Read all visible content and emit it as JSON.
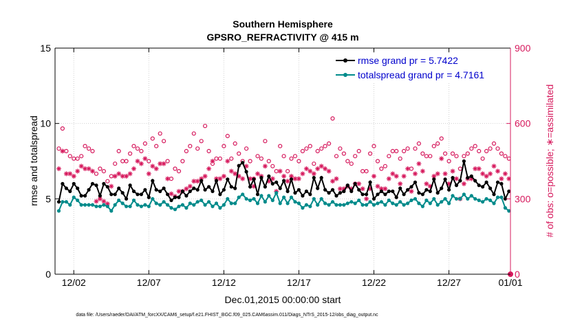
{
  "chart_data": {
    "type": "line",
    "title": "Southern Hemisphere",
    "subtitle": "GPSRO_REFRACTIVITY @ 415 m",
    "xlabel": "Dec.01,2015 00:00:00 start",
    "ylabel": "rmse and totalspread",
    "y2label": "# of obs: o=possible; ∗=assimilated",
    "footnote": "data file: /Users/raeder/DAI/ATM_forcXX/CAM6_setup/f.e21.FHIST_BGC.f09_025.CAM6assim.011/Diags_NTrS_2015-12/obs_diag_output.nc",
    "xlim": [
      0.75,
      31.1
    ],
    "ylim": [
      0,
      15
    ],
    "y2lim": [
      0,
      900
    ],
    "x_ticks": [
      2,
      7,
      12,
      17,
      22,
      27,
      32
    ],
    "x_tick_labels": [
      "12/02",
      "12/07",
      "12/12",
      "12/17",
      "12/22",
      "12/27",
      "01/01"
    ],
    "y_ticks": [
      0,
      5,
      10,
      15
    ],
    "y2_ticks": [
      0,
      300,
      600,
      900
    ],
    "grid": true,
    "legend_position": "top-right",
    "colors": {
      "rmse": "#000000",
      "spread": "#008b8b",
      "obs": "#d6185c",
      "legend_text": "#0000cc"
    },
    "x": [
      1.0,
      1.25,
      1.5,
      1.75,
      2.0,
      2.25,
      2.5,
      2.75,
      3.0,
      3.25,
      3.5,
      3.75,
      4.0,
      4.25,
      4.5,
      4.75,
      5.0,
      5.25,
      5.5,
      5.75,
      6.0,
      6.25,
      6.5,
      6.75,
      7.0,
      7.25,
      7.5,
      7.75,
      8.0,
      8.25,
      8.5,
      8.75,
      9.0,
      9.25,
      9.5,
      9.75,
      10.0,
      10.25,
      10.5,
      10.75,
      11.0,
      11.25,
      11.5,
      11.75,
      12.0,
      12.25,
      12.5,
      12.75,
      13.0,
      13.25,
      13.5,
      13.75,
      14.0,
      14.25,
      14.5,
      14.75,
      15.0,
      15.25,
      15.5,
      15.75,
      16.0,
      16.25,
      16.5,
      16.75,
      17.0,
      17.25,
      17.5,
      17.75,
      18.0,
      18.25,
      18.5,
      18.75,
      19.0,
      19.25,
      19.5,
      19.75,
      20.0,
      20.25,
      20.5,
      20.75,
      21.0,
      21.25,
      21.5,
      21.75,
      22.0,
      22.25,
      22.5,
      22.75,
      23.0,
      23.25,
      23.5,
      23.75,
      24.0,
      24.25,
      24.5,
      24.75,
      25.0,
      25.25,
      25.5,
      25.75,
      26.0,
      26.25,
      26.5,
      26.75,
      27.0,
      27.25,
      27.5,
      27.75,
      28.0,
      28.25,
      28.5,
      28.75,
      29.0,
      29.25,
      29.5,
      29.75,
      30.0,
      30.25,
      30.5,
      30.75,
      31.0
    ],
    "series": [
      {
        "name": "rmse grand pr = 5.7422",
        "marker": "dot",
        "values": [
          4.8,
          6.0,
          5.7,
          5.5,
          6.0,
          5.7,
          5.2,
          5.2,
          5.6,
          6.0,
          5.9,
          5.2,
          6.0,
          5.8,
          5.3,
          5.3,
          5.7,
          5.4,
          5.0,
          5.9,
          5.5,
          5.3,
          5.3,
          5.6,
          5.1,
          6.2,
          5.6,
          5.5,
          5.7,
          5.3,
          4.9,
          5.1,
          5.1,
          5.5,
          5.2,
          5.5,
          5.7,
          5.6,
          6.2,
          5.6,
          5.8,
          5.5,
          6.2,
          5.3,
          5.6,
          6.3,
          5.8,
          5.7,
          7.2,
          7.4,
          6.8,
          5.8,
          6.3,
          5.3,
          6.4,
          5.8,
          6.5,
          6.0,
          6.1,
          5.7,
          6.2,
          5.5,
          6.3,
          5.4,
          5.6,
          5.2,
          5.5,
          5.3,
          6.4,
          5.7,
          6.4,
          5.6,
          5.4,
          5.6,
          5.2,
          5.4,
          5.5,
          5.9,
          5.5,
          6.0,
          5.6,
          5.3,
          5.3,
          6.1,
          5.0,
          5.3,
          5.5,
          5.3,
          5.5,
          5.5,
          5.1,
          5.7,
          5.3,
          5.6,
          5.8,
          6.1,
          5.4,
          5.3,
          5.6,
          5.5,
          6.3,
          5.4,
          5.7,
          6.3,
          5.6,
          6.4,
          5.9,
          6.2,
          7.5,
          6.4,
          6.5,
          6.2,
          5.9,
          5.8,
          6.1,
          5.7,
          5.3,
          6.1,
          6.0,
          5.0,
          5.5
        ]
      },
      {
        "name": "totalspread grand pr = 4.7161",
        "marker": "dot",
        "values": [
          4.2,
          4.8,
          4.8,
          4.6,
          5.1,
          4.9,
          4.6,
          4.6,
          4.6,
          4.6,
          4.5,
          4.5,
          4.6,
          4.5,
          4.2,
          4.6,
          4.9,
          4.7,
          4.5,
          4.5,
          4.9,
          4.6,
          4.5,
          4.6,
          4.5,
          5.0,
          4.7,
          4.6,
          4.8,
          4.6,
          4.4,
          4.3,
          4.5,
          4.6,
          4.4,
          4.7,
          4.6,
          4.8,
          4.9,
          4.6,
          4.8,
          4.5,
          4.7,
          4.4,
          4.6,
          5.0,
          4.7,
          4.7,
          5.1,
          5.3,
          5.0,
          4.9,
          5.0,
          4.7,
          5.2,
          4.8,
          5.2,
          4.9,
          5.4,
          4.7,
          5.1,
          4.7,
          5.1,
          4.8,
          4.7,
          4.4,
          4.6,
          4.5,
          5.0,
          4.6,
          5.0,
          4.7,
          4.6,
          4.8,
          4.6,
          4.6,
          4.6,
          4.7,
          4.8,
          4.7,
          4.9,
          4.6,
          4.6,
          4.8,
          4.6,
          4.7,
          4.8,
          4.6,
          4.9,
          4.7,
          4.6,
          4.8,
          4.6,
          4.7,
          4.9,
          5.0,
          4.7,
          4.5,
          4.9,
          4.7,
          5.0,
          4.6,
          4.8,
          5.0,
          4.7,
          5.2,
          5.0,
          5.0,
          5.3,
          5.0,
          5.2,
          5.0,
          4.9,
          4.8,
          5.0,
          4.9,
          4.7,
          5.1,
          5.1,
          4.4,
          4.2
        ]
      },
      {
        "name": "possible",
        "axis": "right",
        "marker": "circle",
        "values": [
          500,
          580,
          490,
          470,
          460,
          460,
          470,
          510,
          500,
          490,
          400,
          420,
          410,
          370,
          390,
          440,
          490,
          450,
          450,
          480,
          510,
          500,
          490,
          520,
          450,
          540,
          510,
          560,
          530,
          450,
          380,
          420,
          410,
          450,
          490,
          510,
          560,
          500,
          530,
          590,
          490,
          440,
          460,
          460,
          510,
          550,
          460,
          520,
          480,
          450,
          500,
          450,
          380,
          470,
          460,
          530,
          450,
          430,
          410,
          510,
          470,
          410,
          460,
          470,
          450,
          490,
          500,
          510,
          440,
          490,
          500,
          510,
          520,
          620,
          470,
          500,
          480,
          450,
          440,
          470,
          490,
          410,
          410,
          480,
          510,
          450,
          420,
          430,
          470,
          490,
          490,
          460,
          490,
          500,
          420,
          500,
          520,
          480,
          470,
          470,
          510,
          520,
          540,
          480,
          450,
          480,
          470,
          420,
          470,
          480,
          500,
          510,
          490,
          460,
          490,
          500,
          520,
          500,
          480,
          470,
          460
        ]
      },
      {
        "name": "assimilated",
        "axis": "right",
        "marker": "star",
        "values": [
          420,
          490,
          400,
          400,
          390,
          410,
          430,
          420,
          420,
          410,
          290,
          300,
          290,
          280,
          350,
          390,
          400,
          390,
          390,
          400,
          420,
          450,
          440,
          460,
          400,
          430,
          420,
          440,
          440,
          380,
          320,
          310,
          330,
          330,
          340,
          350,
          370,
          370,
          380,
          390,
          420,
          450,
          380,
          380,
          390,
          450,
          410,
          400,
          390,
          380,
          430,
          380,
          350,
          400,
          390,
          430,
          370,
          380,
          330,
          410,
          390,
          370,
          390,
          380,
          380,
          400,
          420,
          410,
          400,
          420,
          430,
          420,
          410,
          370,
          380,
          340,
          340,
          350,
          340,
          360,
          360,
          340,
          300,
          340,
          390,
          350,
          340,
          340,
          380,
          400,
          390,
          360,
          390,
          420,
          330,
          400,
          440,
          410,
          360,
          350,
          390,
          400,
          460,
          400,
          360,
          410,
          380,
          300,
          360,
          380,
          380,
          420,
          420,
          400,
          390,
          400,
          430,
          410,
          380,
          400,
          380
        ]
      }
    ]
  }
}
